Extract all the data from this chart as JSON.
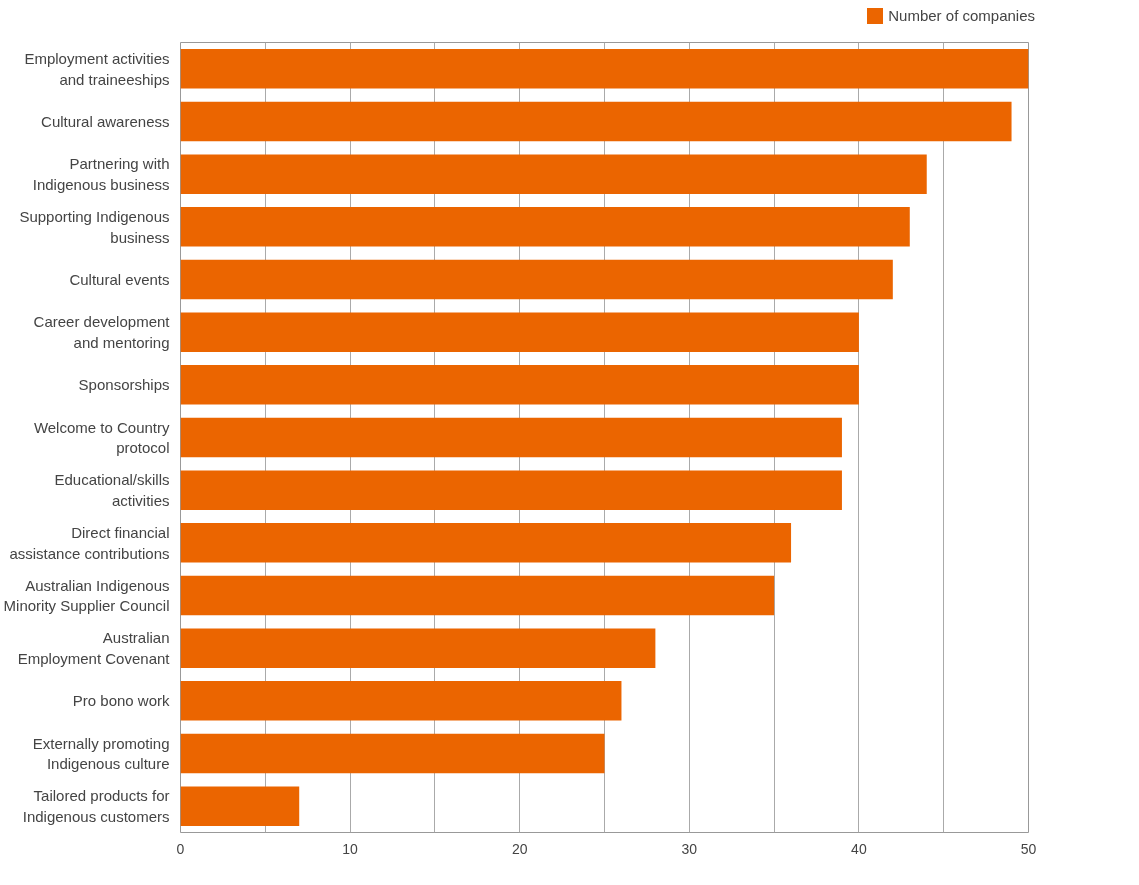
{
  "chart_data": {
    "type": "bar",
    "orientation": "horizontal",
    "categories": [
      "Employment activities\nand traineeships",
      "Cultural awareness",
      "Partnering with\nIndigenous business",
      "Supporting Indigenous\nbusiness",
      "Cultural events",
      "Career development\nand mentoring",
      "Sponsorships",
      "Welcome to Country\nprotocol",
      "Educational/skills\nactivities",
      "Direct financial\nassistance contributions",
      "Australian Indigenous\nMinority Supplier Council",
      "Australian\nEmployment Covenant",
      "Pro bono work",
      "Externally promoting\nIndigenous culture",
      "Tailored products for\nIndigenous customers"
    ],
    "series": [
      {
        "name": "Number of companies",
        "color": "#eb6500",
        "values": [
          50,
          49,
          44,
          43,
          42,
          40,
          40,
          39,
          39,
          36,
          35,
          28,
          26,
          25,
          7
        ]
      }
    ],
    "xlim": [
      0,
      50
    ],
    "xticks": [
      0,
      {
        "value": 5,
        "label": null
      },
      10,
      {
        "value": 15,
        "label": null
      },
      20,
      {
        "value": 25,
        "label": null
      },
      30,
      {
        "value": 35,
        "label": null
      },
      40,
      {
        "value": 45,
        "label": null
      },
      50
    ],
    "grid": "x",
    "legend": "top right"
  }
}
